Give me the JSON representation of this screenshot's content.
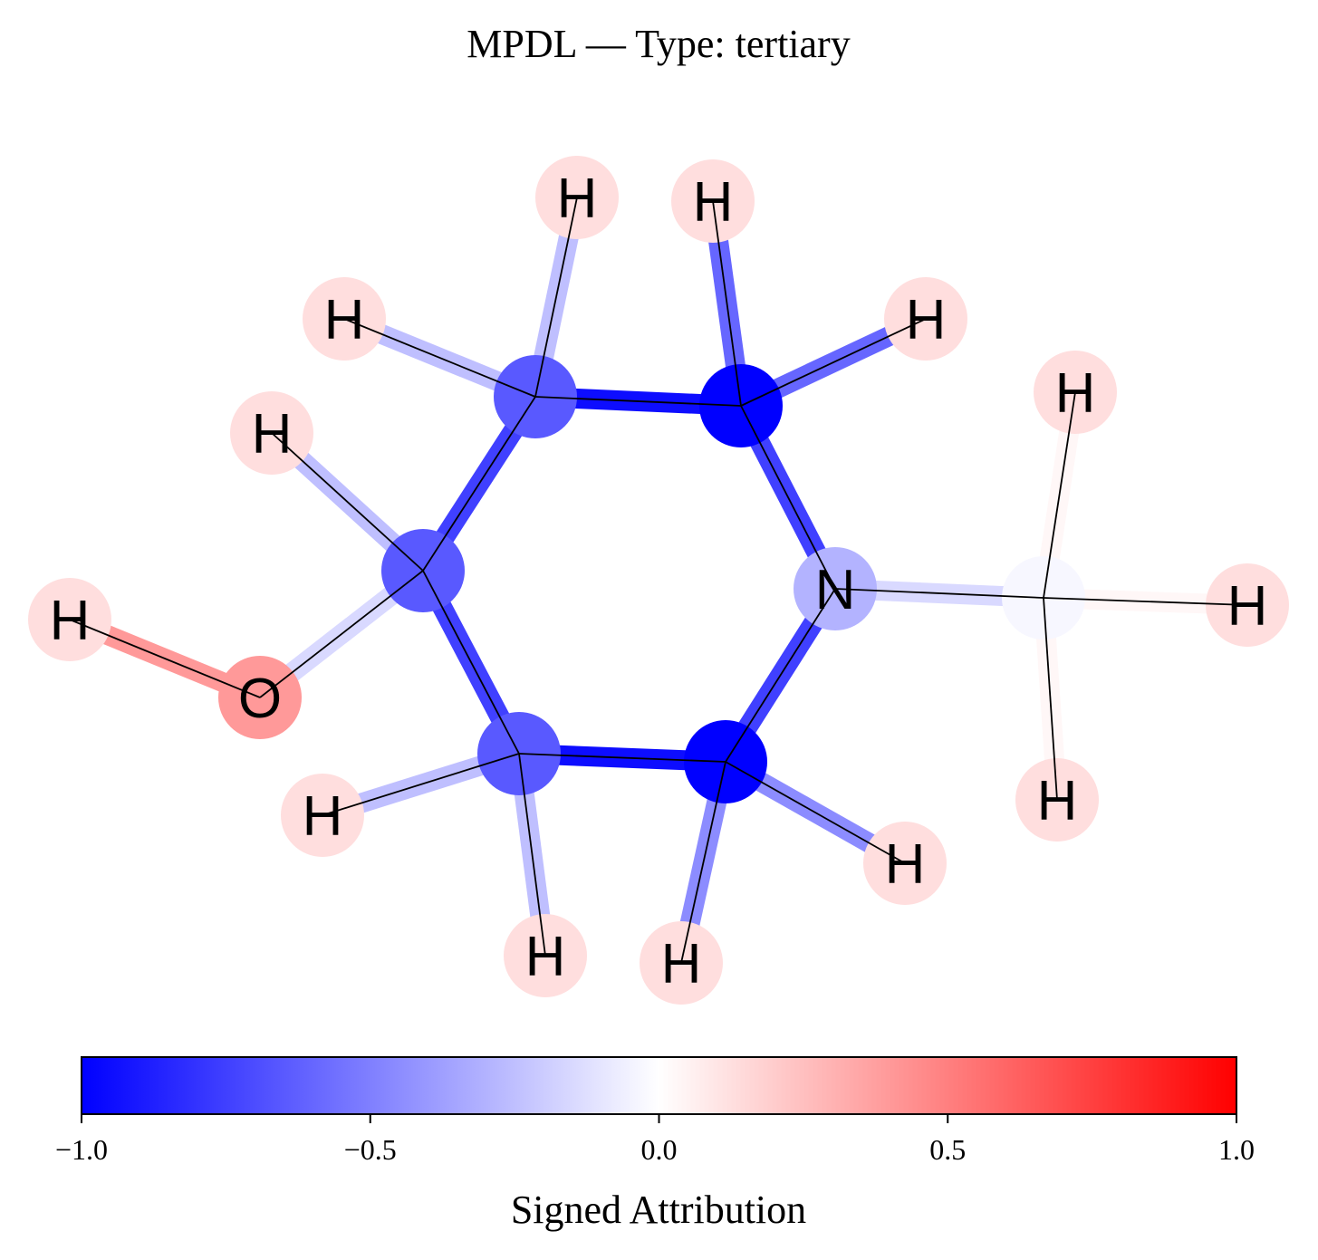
{
  "figure": {
    "title": "MPDL — Type: tertiary"
  },
  "molecule": {
    "atoms": [
      {
        "id": "C1",
        "element": "C",
        "label": "",
        "attribution": -0.65
      },
      {
        "id": "C2",
        "element": "C",
        "label": "",
        "attribution": -1.0
      },
      {
        "id": "N",
        "element": "N",
        "label": "N",
        "attribution": -0.3
      },
      {
        "id": "C3",
        "element": "C",
        "label": "",
        "attribution": -1.0
      },
      {
        "id": "C4",
        "element": "C",
        "label": "",
        "attribution": -0.65
      },
      {
        "id": "C5",
        "element": "C",
        "label": "",
        "attribution": -0.65
      },
      {
        "id": "O",
        "element": "O",
        "label": "O",
        "attribution": 0.4
      },
      {
        "id": "Cm",
        "element": "C",
        "label": "",
        "attribution": -0.03
      },
      {
        "id": "H1",
        "element": "H",
        "label": "H",
        "attribution": 0.13
      },
      {
        "id": "H2",
        "element": "H",
        "label": "H",
        "attribution": 0.13
      },
      {
        "id": "H3",
        "element": "H",
        "label": "H",
        "attribution": 0.13
      },
      {
        "id": "H4",
        "element": "H",
        "label": "H",
        "attribution": 0.13
      },
      {
        "id": "H5",
        "element": "H",
        "label": "H",
        "attribution": 0.13
      },
      {
        "id": "H6",
        "element": "H",
        "label": "H",
        "attribution": 0.13
      },
      {
        "id": "H7",
        "element": "H",
        "label": "H",
        "attribution": 0.13
      },
      {
        "id": "H8",
        "element": "H",
        "label": "H",
        "attribution": 0.13
      },
      {
        "id": "H9",
        "element": "H",
        "label": "H",
        "attribution": 0.13
      },
      {
        "id": "H10",
        "element": "H",
        "label": "H",
        "attribution": 0.13
      },
      {
        "id": "H11",
        "element": "H",
        "label": "H",
        "attribution": 0.13
      },
      {
        "id": "H12",
        "element": "H",
        "label": "H",
        "attribution": 0.13
      },
      {
        "id": "H13",
        "element": "H",
        "label": "H",
        "attribution": 0.13
      },
      {
        "id": "H14",
        "element": "H",
        "label": "H",
        "attribution": 0.13
      }
    ],
    "bonds": [
      {
        "a": "C1",
        "b": "C2",
        "attribution": -0.95
      },
      {
        "a": "C2",
        "b": "N",
        "attribution": -0.75
      },
      {
        "a": "N",
        "b": "C3",
        "attribution": -0.75
      },
      {
        "a": "C3",
        "b": "C4",
        "attribution": -0.95
      },
      {
        "a": "C4",
        "b": "C5",
        "attribution": -0.75
      },
      {
        "a": "C5",
        "b": "C1",
        "attribution": -0.75
      },
      {
        "a": "C5",
        "b": "O",
        "attribution": -0.15
      },
      {
        "a": "O",
        "b": "H5",
        "attribution": 0.4
      },
      {
        "a": "N",
        "b": "Cm",
        "attribution": -0.15
      },
      {
        "a": "C1",
        "b": "H1",
        "attribution": -0.25
      },
      {
        "a": "C1",
        "b": "H3",
        "attribution": -0.25
      },
      {
        "a": "C2",
        "b": "H2",
        "attribution": -0.6
      },
      {
        "a": "C2",
        "b": "H6",
        "attribution": -0.6
      },
      {
        "a": "C5",
        "b": "H4",
        "attribution": -0.25
      },
      {
        "a": "C4",
        "b": "H7",
        "attribution": -0.25
      },
      {
        "a": "C4",
        "b": "H8",
        "attribution": -0.25
      },
      {
        "a": "C3",
        "b": "H9",
        "attribution": -0.45
      },
      {
        "a": "C3",
        "b": "H10",
        "attribution": -0.45
      },
      {
        "a": "Cm",
        "b": "H11",
        "attribution": 0.03
      },
      {
        "a": "Cm",
        "b": "H12",
        "attribution": 0.03
      },
      {
        "a": "Cm",
        "b": "H13",
        "attribution": 0.03
      }
    ]
  },
  "colorbar": {
    "label": "Signed Attribution",
    "min": -1.0,
    "max": 1.0,
    "ticks": [
      {
        "value": -1.0,
        "label": "−1.0"
      },
      {
        "value": -0.5,
        "label": "−0.5"
      },
      {
        "value": 0.0,
        "label": "0.0"
      },
      {
        "value": 0.5,
        "label": "0.5"
      },
      {
        "value": 1.0,
        "label": "1.0"
      }
    ],
    "colors": {
      "negative": "#0000ff",
      "zero": "#ffffff",
      "positive": "#ff0000"
    }
  }
}
